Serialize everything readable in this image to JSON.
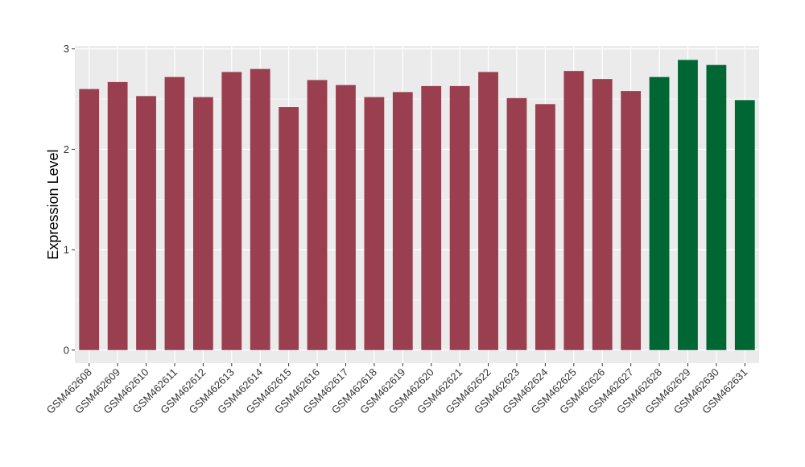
{
  "chart_data": {
    "type": "bar",
    "title": "",
    "xlabel": "",
    "ylabel": "Expression Level",
    "ylim": [
      -0.13,
      3.03
    ],
    "yticks": [
      0,
      1,
      2,
      3
    ],
    "grid": true,
    "legend": "none",
    "colors": {
      "group1": "#993F4F",
      "group2": "#006633",
      "panel": "#EBEBEB",
      "grid": "#FFFFFF"
    },
    "categories": [
      "GSM462608",
      "GSM462609",
      "GSM462610",
      "GSM462611",
      "GSM462612",
      "GSM462613",
      "GSM462614",
      "GSM462615",
      "GSM462616",
      "GSM462617",
      "GSM462618",
      "GSM462619",
      "GSM462620",
      "GSM462621",
      "GSM462622",
      "GSM462623",
      "GSM462624",
      "GSM462625",
      "GSM462626",
      "GSM462627",
      "GSM462628",
      "GSM462629",
      "GSM462630",
      "GSM462631"
    ],
    "values": [
      2.6,
      2.67,
      2.53,
      2.72,
      2.52,
      2.77,
      2.8,
      2.42,
      2.69,
      2.64,
      2.52,
      2.57,
      2.63,
      2.63,
      2.77,
      2.51,
      2.45,
      2.78,
      2.7,
      2.58,
      2.72,
      2.89,
      2.84,
      2.49
    ],
    "groups": [
      "group1",
      "group1",
      "group1",
      "group1",
      "group1",
      "group1",
      "group1",
      "group1",
      "group1",
      "group1",
      "group1",
      "group1",
      "group1",
      "group1",
      "group1",
      "group1",
      "group1",
      "group1",
      "group1",
      "group1",
      "group2",
      "group2",
      "group2",
      "group2"
    ]
  }
}
